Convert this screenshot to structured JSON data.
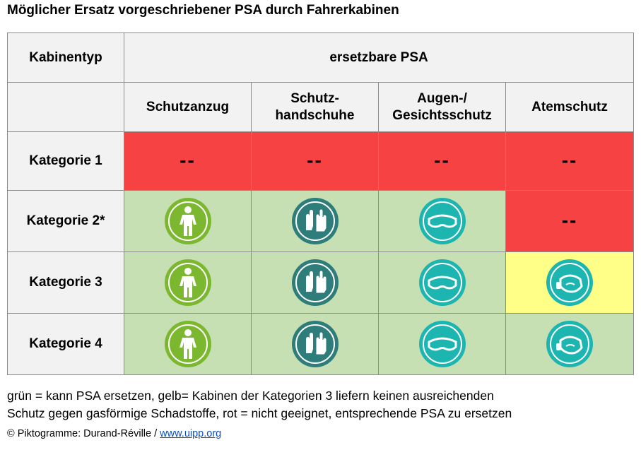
{
  "title": "Möglicher Ersatz vorgeschriebener PSA durch Fahrerkabinen",
  "header": {
    "cabin_type": "Kabinentyp",
    "replaceable_psa": "ersetzbare PSA",
    "columns": [
      {
        "line1": "Schutzanzug",
        "line2": ""
      },
      {
        "line1": "Schutz-",
        "line2": "handschuhe"
      },
      {
        "line1": "Augen-/",
        "line2": "Gesichtsschutz"
      },
      {
        "line1": "Atemschutz",
        "line2": ""
      }
    ]
  },
  "rows": [
    {
      "label": "Kategorie 1",
      "cells": [
        {
          "status": "red",
          "text": "--"
        },
        {
          "status": "red",
          "text": "--"
        },
        {
          "status": "red",
          "text": "--"
        },
        {
          "status": "red",
          "text": "--"
        }
      ]
    },
    {
      "label": "Kategorie 2*",
      "cells": [
        {
          "status": "green",
          "icon": "protective-suit-icon"
        },
        {
          "status": "green",
          "icon": "gloves-icon"
        },
        {
          "status": "green",
          "icon": "goggles-icon"
        },
        {
          "status": "red",
          "text": "--"
        }
      ]
    },
    {
      "label": "Kategorie 3",
      "cells": [
        {
          "status": "green",
          "icon": "protective-suit-icon"
        },
        {
          "status": "green",
          "icon": "gloves-icon"
        },
        {
          "status": "green",
          "icon": "goggles-icon"
        },
        {
          "status": "yellow",
          "icon": "respirator-mask-icon"
        }
      ]
    },
    {
      "label": "Kategorie 4",
      "cells": [
        {
          "status": "green",
          "icon": "protective-suit-icon"
        },
        {
          "status": "green",
          "icon": "gloves-icon"
        },
        {
          "status": "green",
          "icon": "goggles-icon"
        },
        {
          "status": "green",
          "icon": "respirator-mask-icon"
        }
      ]
    }
  ],
  "colors": {
    "red": "#f64242",
    "green": "#c6e0b4",
    "yellow": "#ffff88",
    "suit_icon": "#7cb82f",
    "gloves_icon": "#2f7d7a",
    "goggles_icon": "#1db5b0"
  },
  "legend": {
    "line1": "grün = kann PSA ersetzen, gelb= Kabinen der Kategorien 3 liefern keinen ausreichenden",
    "line2": "Schutz gegen gasförmige Schadstoffe, rot = nicht geeignet, entsprechende PSA zu ersetzen"
  },
  "credit": {
    "prefix": "© Piktogramme: Durand-Réville / ",
    "link": "www.uipp.org"
  }
}
